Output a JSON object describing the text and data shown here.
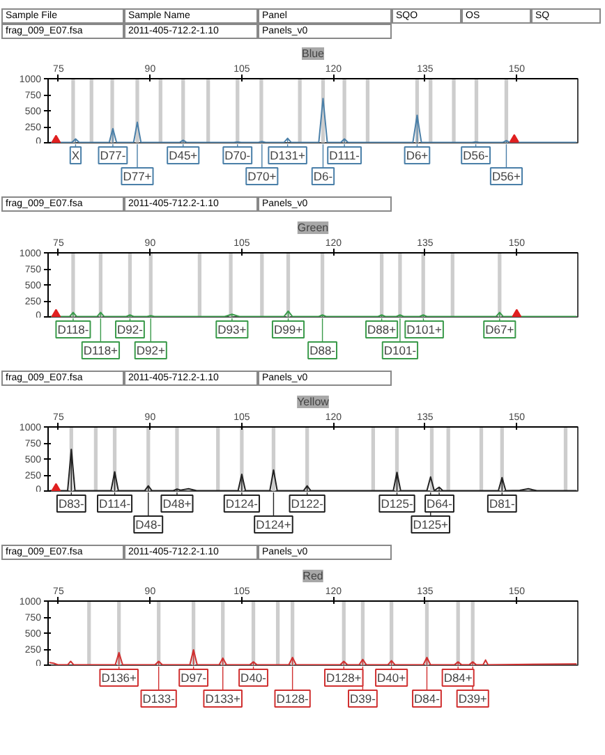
{
  "chart_data": [
    {
      "type": "line",
      "title": "Blue",
      "xlim": [
        73.3,
        160
      ],
      "ylim": [
        0,
        1000
      ],
      "xticks": [
        75,
        90,
        105,
        120,
        135,
        150
      ],
      "yticks": [
        0,
        250,
        500,
        750,
        1000
      ],
      "annotations": [
        "Sample File",
        "Sample Name",
        "Panel",
        "SQO",
        "OS",
        "SQ",
        "frag_009_E07.fsa",
        "2011-405-712.2-1.10",
        "Panels_v0",
        {
          "text": "X",
          "x": 77.8,
          "y": 60
        },
        {
          "text": "D77-",
          "x": 83.9,
          "y": 220
        },
        {
          "text": "D77+",
          "x": 87.9,
          "y": 0
        },
        {
          "text": "D45+",
          "x": 95.4,
          "y": 40
        },
        {
          "text": "D70-",
          "x": 104.3,
          "y": 15
        },
        {
          "text": "D70+",
          "x": 108.3,
          "y": 20
        },
        {
          "text": "D131+",
          "x": 112.5,
          "y": 70
        },
        {
          "text": "D6-",
          "x": 118.3,
          "y": 0
        },
        {
          "text": "D111-",
          "x": 121.8,
          "y": 60
        },
        {
          "text": "D6+",
          "x": 133.7,
          "y": 430
        },
        {
          "text": "D56-",
          "x": 143.3,
          "y": 15
        },
        {
          "text": "D56+",
          "x": 148.3,
          "y": 35
        }
      ],
      "bands": [
        {
          "axis": "x",
          "from": 77.1,
          "to": 77.7,
          "color": "#c4c4c4"
        },
        {
          "axis": "x",
          "from": 80.1,
          "to": 80.7,
          "color": "#c4c4c4"
        },
        {
          "axis": "x",
          "from": 83.5,
          "to": 84.1,
          "color": "#c4c4c4"
        },
        {
          "axis": "x",
          "from": 87.6,
          "to": 88.2,
          "color": "#c4c4c4"
        },
        {
          "axis": "x",
          "from": 91.4,
          "to": 92.0,
          "color": "#c4c4c4"
        },
        {
          "axis": "x",
          "from": 95.1,
          "to": 95.7,
          "color": "#c4c4c4"
        },
        {
          "axis": "x",
          "from": 99.2,
          "to": 99.8,
          "color": "#c4c4c4"
        },
        {
          "axis": "x",
          "from": 104.0,
          "to": 104.6,
          "color": "#c4c4c4"
        },
        {
          "axis": "x",
          "from": 107.9,
          "to": 108.5,
          "color": "#c4c4c4"
        },
        {
          "axis": "x",
          "from": 114.2,
          "to": 114.8,
          "color": "#c4c4c4"
        },
        {
          "axis": "x",
          "from": 118.0,
          "to": 118.6,
          "color": "#c4c4c4"
        },
        {
          "axis": "x",
          "from": 121.5,
          "to": 122.1,
          "color": "#c4c4c4"
        },
        {
          "axis": "x",
          "from": 125.3,
          "to": 125.9,
          "color": "#c4c4c4"
        },
        {
          "axis": "x",
          "from": 133.4,
          "to": 134.0,
          "color": "#c4c4c4"
        },
        {
          "axis": "x",
          "from": 135.6,
          "to": 136.2,
          "color": "#c4c4c4"
        },
        {
          "axis": "x",
          "from": 139.4,
          "to": 140.0,
          "color": "#c4c4c4"
        },
        {
          "axis": "x",
          "from": 143.1,
          "to": 143.7,
          "color": "#c4c4c4"
        },
        {
          "axis": "x",
          "from": 148.0,
          "to": 148.6,
          "color": "#c4c4c4"
        }
      ],
      "series": [
        {
          "type": "line",
          "color": "#4a7fa8",
          "x": [
            73.5,
            77.2,
            77.8,
            78.4,
            83.3,
            83.9,
            84.5,
            87.3,
            87.9,
            88.5,
            94.8,
            95.4,
            96.0,
            103.7,
            104.3,
            104.9,
            107.7,
            108.3,
            108.9,
            111.9,
            112.5,
            113.1,
            117.6,
            118.3,
            119.0,
            121.2,
            121.8,
            122.4,
            133.0,
            133.7,
            134.4,
            142.7,
            143.3,
            143.9,
            147.7,
            148.3,
            148.9,
            159.8
          ],
          "values": [
            5,
            5,
            60,
            5,
            5,
            220,
            5,
            5,
            320,
            5,
            5,
            40,
            5,
            5,
            15,
            5,
            5,
            20,
            5,
            5,
            70,
            5,
            5,
            690,
            5,
            5,
            60,
            5,
            5,
            430,
            5,
            5,
            15,
            5,
            5,
            35,
            5,
            5
          ]
        },
        {
          "type": "scatter",
          "marker": "triangle",
          "color": "#e02020",
          "x": [
            74.6,
            149.6
          ],
          "values": [
            40,
            50
          ]
        }
      ]
    },
    {
      "type": "line",
      "title": "Green",
      "xlim": [
        73.3,
        160
      ],
      "ylim": [
        0,
        1000
      ],
      "xticks": [
        75,
        90,
        105,
        120,
        135,
        150
      ],
      "yticks": [
        0,
        250,
        500,
        750,
        1000
      ],
      "annotations": [
        "frag_009_E07.fsa",
        "2011-405-712.2-1.10",
        "Panels_v0",
        {
          "text": "D118-",
          "x": 77.4,
          "y": 70
        },
        {
          "text": "D118+",
          "x": 81.9,
          "y": 70
        },
        {
          "text": "D92-",
          "x": 86.7,
          "y": 30
        },
        {
          "text": "D92+",
          "x": 90.1,
          "y": 20
        },
        {
          "text": "D93+",
          "x": 103.4,
          "y": 40
        },
        {
          "text": "D99+",
          "x": 112.6,
          "y": 90
        },
        {
          "text": "D88-",
          "x": 118.2,
          "y": 30
        },
        {
          "text": "D88+",
          "x": 127.9,
          "y": 30
        },
        {
          "text": "D101-",
          "x": 130.9,
          "y": 30
        },
        {
          "text": "D101+",
          "x": 134.7,
          "y": 30
        },
        {
          "text": "D67+",
          "x": 147.2,
          "y": 70
        }
      ],
      "bands": [
        {
          "axis": "x",
          "from": 77.1,
          "to": 77.7,
          "color": "#c4c4c4"
        },
        {
          "axis": "x",
          "from": 81.6,
          "to": 82.2,
          "color": "#c4c4c4"
        },
        {
          "axis": "x",
          "from": 86.4,
          "to": 87.0,
          "color": "#c4c4c4"
        },
        {
          "axis": "x",
          "from": 89.8,
          "to": 90.4,
          "color": "#c4c4c4"
        },
        {
          "axis": "x",
          "from": 97.8,
          "to": 98.4,
          "color": "#c4c4c4"
        },
        {
          "axis": "x",
          "from": 102.9,
          "to": 103.5,
          "color": "#c4c4c4"
        },
        {
          "axis": "x",
          "from": 108.0,
          "to": 108.6,
          "color": "#c4c4c4"
        },
        {
          "axis": "x",
          "from": 112.3,
          "to": 112.9,
          "color": "#c4c4c4"
        },
        {
          "axis": "x",
          "from": 117.9,
          "to": 118.5,
          "color": "#c4c4c4"
        },
        {
          "axis": "x",
          "from": 127.6,
          "to": 128.2,
          "color": "#c4c4c4"
        },
        {
          "axis": "x",
          "from": 130.6,
          "to": 131.2,
          "color": "#c4c4c4"
        },
        {
          "axis": "x",
          "from": 134.4,
          "to": 135.0,
          "color": "#c4c4c4"
        },
        {
          "axis": "x",
          "from": 139.2,
          "to": 139.8,
          "color": "#c4c4c4"
        },
        {
          "axis": "x",
          "from": 146.9,
          "to": 147.5,
          "color": "#c4c4c4"
        }
      ],
      "series": [
        {
          "type": "line",
          "color": "#3a9a4a",
          "x": [
            73.5,
            76.8,
            77.4,
            78.0,
            81.3,
            81.9,
            82.5,
            86.1,
            86.7,
            87.3,
            89.5,
            90.1,
            90.7,
            102.2,
            103.4,
            104.6,
            111.9,
            112.6,
            113.3,
            117.6,
            118.2,
            118.8,
            127.3,
            127.9,
            128.5,
            130.3,
            130.9,
            131.5,
            134.1,
            134.7,
            135.3,
            146.6,
            147.2,
            147.8,
            159.8
          ],
          "values": [
            5,
            5,
            70,
            5,
            5,
            70,
            5,
            5,
            30,
            5,
            5,
            20,
            5,
            5,
            40,
            5,
            5,
            90,
            5,
            5,
            30,
            5,
            5,
            30,
            5,
            5,
            30,
            5,
            5,
            30,
            5,
            5,
            70,
            5,
            5
          ]
        },
        {
          "type": "scatter",
          "marker": "triangle",
          "color": "#e02020",
          "x": [
            74.6,
            150.0
          ],
          "values": [
            40,
            40
          ]
        }
      ]
    },
    {
      "type": "line",
      "title": "Yellow",
      "xlim": [
        73.3,
        160
      ],
      "ylim": [
        0,
        1000
      ],
      "xticks": [
        75,
        90,
        105,
        120,
        135,
        150
      ],
      "yticks": [
        0,
        250,
        500,
        750,
        1000
      ],
      "annotations": [
        "frag_009_E07.fsa",
        "2011-405-712.2-1.10",
        "Panels_v0",
        {
          "text": "D83-",
          "x": 77.1,
          "y": 650
        },
        {
          "text": "D114-",
          "x": 84.2,
          "y": 300
        },
        {
          "text": "D48-",
          "x": 89.7,
          "y": 80
        },
        {
          "text": "D48+",
          "x": 94.4,
          "y": 30
        },
        {
          "text": "D124-",
          "x": 105.0,
          "y": 260
        },
        {
          "text": "D124+",
          "x": 110.2,
          "y": 0
        },
        {
          "text": "D122-",
          "x": 115.7,
          "y": 80
        },
        {
          "text": "D125-",
          "x": 130.4,
          "y": 290
        },
        {
          "text": "D125+",
          "x": 135.9,
          "y": 0
        },
        {
          "text": "D64-",
          "x": 137.3,
          "y": 60
        },
        {
          "text": "D81-",
          "x": 147.6,
          "y": 210
        }
      ],
      "bands": [
        {
          "axis": "x",
          "from": 76.8,
          "to": 77.4,
          "color": "#c4c4c4"
        },
        {
          "axis": "x",
          "from": 80.8,
          "to": 81.4,
          "color": "#c4c4c4"
        },
        {
          "axis": "x",
          "from": 83.9,
          "to": 84.5,
          "color": "#c4c4c4"
        },
        {
          "axis": "x",
          "from": 89.4,
          "to": 90.0,
          "color": "#c4c4c4"
        },
        {
          "axis": "x",
          "from": 94.1,
          "to": 94.7,
          "color": "#c4c4c4"
        },
        {
          "axis": "x",
          "from": 100.8,
          "to": 101.4,
          "color": "#c4c4c4"
        },
        {
          "axis": "x",
          "from": 104.7,
          "to": 105.3,
          "color": "#c4c4c4"
        },
        {
          "axis": "x",
          "from": 109.9,
          "to": 110.5,
          "color": "#c4c4c4"
        },
        {
          "axis": "x",
          "from": 115.4,
          "to": 116.0,
          "color": "#c4c4c4"
        },
        {
          "axis": "x",
          "from": 126.2,
          "to": 126.8,
          "color": "#c4c4c4"
        },
        {
          "axis": "x",
          "from": 130.1,
          "to": 130.7,
          "color": "#c4c4c4"
        },
        {
          "axis": "x",
          "from": 135.8,
          "to": 136.4,
          "color": "#c4c4c4"
        },
        {
          "axis": "x",
          "from": 138.5,
          "to": 139.1,
          "color": "#c4c4c4"
        },
        {
          "axis": "x",
          "from": 143.9,
          "to": 144.5,
          "color": "#c4c4c4"
        },
        {
          "axis": "x",
          "from": 147.3,
          "to": 147.9,
          "color": "#c4c4c4"
        },
        {
          "axis": "x",
          "from": 157.7,
          "to": 158.3,
          "color": "#c4c4c4"
        }
      ],
      "series": [
        {
          "type": "line",
          "color": "#222222",
          "x": [
            73.5,
            76.5,
            77.1,
            77.7,
            83.6,
            84.2,
            84.8,
            89.1,
            89.7,
            90.3,
            93.8,
            94.4,
            95.0,
            96.3,
            97.6,
            104.4,
            105.0,
            105.6,
            109.6,
            110.2,
            110.8,
            115.1,
            115.7,
            116.3,
            129.8,
            130.4,
            131.0,
            135.3,
            135.9,
            136.5,
            137.3,
            137.9,
            147.0,
            147.6,
            148.2,
            150.5,
            151.9,
            153.3,
            159.8
          ],
          "values": [
            5,
            5,
            650,
            5,
            5,
            300,
            5,
            5,
            80,
            5,
            5,
            30,
            15,
            35,
            5,
            5,
            260,
            5,
            5,
            330,
            5,
            5,
            80,
            5,
            5,
            290,
            5,
            5,
            220,
            5,
            60,
            5,
            5,
            210,
            5,
            10,
            35,
            5,
            5
          ]
        },
        {
          "type": "scatter",
          "marker": "triangle",
          "color": "#e02020",
          "x": [
            74.6
          ],
          "values": [
            40
          ]
        }
      ]
    },
    {
      "type": "line",
      "title": "Red",
      "xlim": [
        73.3,
        160
      ],
      "ylim": [
        0,
        1000
      ],
      "xticks": [
        75,
        90,
        105,
        120,
        135,
        150
      ],
      "yticks": [
        0,
        250,
        500,
        750,
        1000
      ],
      "annotations": [
        "frag_009_E07.fsa",
        "2011-405-712.2-1.10",
        "Panels_v0",
        {
          "text": "D136+",
          "x": 84.9,
          "y": 195
        },
        {
          "text": "D133-",
          "x": 91.4,
          "y": 60
        },
        {
          "text": "D97-",
          "x": 97.1,
          "y": 240
        },
        {
          "text": "D133+",
          "x": 101.9,
          "y": 110
        },
        {
          "text": "D40-",
          "x": 106.9,
          "y": 50
        },
        {
          "text": "D128-",
          "x": 113.3,
          "y": 120
        },
        {
          "text": "D128+",
          "x": 121.7,
          "y": 60
        },
        {
          "text": "D39-",
          "x": 124.8,
          "y": 90
        },
        {
          "text": "D40+",
          "x": 129.5,
          "y": 70
        },
        {
          "text": "D84-",
          "x": 135.3,
          "y": 120
        },
        {
          "text": "D84+",
          "x": 140.4,
          "y": 50
        },
        {
          "text": "D39+",
          "x": 142.8,
          "y": 50
        }
      ],
      "bands": [
        {
          "axis": "x",
          "from": 79.7,
          "to": 80.3,
          "color": "#c4c4c4"
        },
        {
          "axis": "x",
          "from": 84.6,
          "to": 85.2,
          "color": "#c4c4c4"
        },
        {
          "axis": "x",
          "from": 91.1,
          "to": 91.7,
          "color": "#c4c4c4"
        },
        {
          "axis": "x",
          "from": 96.8,
          "to": 97.4,
          "color": "#c4c4c4"
        },
        {
          "axis": "x",
          "from": 101.6,
          "to": 102.2,
          "color": "#c4c4c4"
        },
        {
          "axis": "x",
          "from": 106.6,
          "to": 107.2,
          "color": "#c4c4c4"
        },
        {
          "axis": "x",
          "from": 110.6,
          "to": 111.2,
          "color": "#c4c4c4"
        },
        {
          "axis": "x",
          "from": 113.0,
          "to": 113.6,
          "color": "#c4c4c4"
        },
        {
          "axis": "x",
          "from": 121.4,
          "to": 122.0,
          "color": "#c4c4c4"
        },
        {
          "axis": "x",
          "from": 124.5,
          "to": 125.1,
          "color": "#c4c4c4"
        },
        {
          "axis": "x",
          "from": 129.2,
          "to": 129.8,
          "color": "#c4c4c4"
        },
        {
          "axis": "x",
          "from": 135.0,
          "to": 135.6,
          "color": "#c4c4c4"
        },
        {
          "axis": "x",
          "from": 140.1,
          "to": 140.7,
          "color": "#c4c4c4"
        },
        {
          "axis": "x",
          "from": 142.5,
          "to": 143.1,
          "color": "#c4c4c4"
        }
      ],
      "series": [
        {
          "type": "line",
          "color": "#d03030",
          "x": [
            73.5,
            74.2,
            74.9,
            76.5,
            77.0,
            77.5,
            84.3,
            84.9,
            85.5,
            90.8,
            91.4,
            92.0,
            96.5,
            97.1,
            97.7,
            101.3,
            101.9,
            102.5,
            106.3,
            106.9,
            107.5,
            112.7,
            113.3,
            113.9,
            121.1,
            121.7,
            122.3,
            124.2,
            124.8,
            125.4,
            128.9,
            129.5,
            130.1,
            134.7,
            135.3,
            135.9,
            139.8,
            140.4,
            141.0,
            142.2,
            142.8,
            143.4,
            144.5,
            144.9,
            145.3,
            159.8
          ],
          "values": [
            40,
            30,
            5,
            5,
            60,
            5,
            5,
            195,
            5,
            5,
            60,
            5,
            5,
            240,
            5,
            5,
            110,
            5,
            5,
            50,
            5,
            5,
            120,
            5,
            5,
            60,
            5,
            5,
            90,
            5,
            5,
            70,
            5,
            5,
            120,
            5,
            5,
            50,
            5,
            5,
            50,
            5,
            5,
            80,
            5,
            20
          ]
        }
      ]
    }
  ]
}
